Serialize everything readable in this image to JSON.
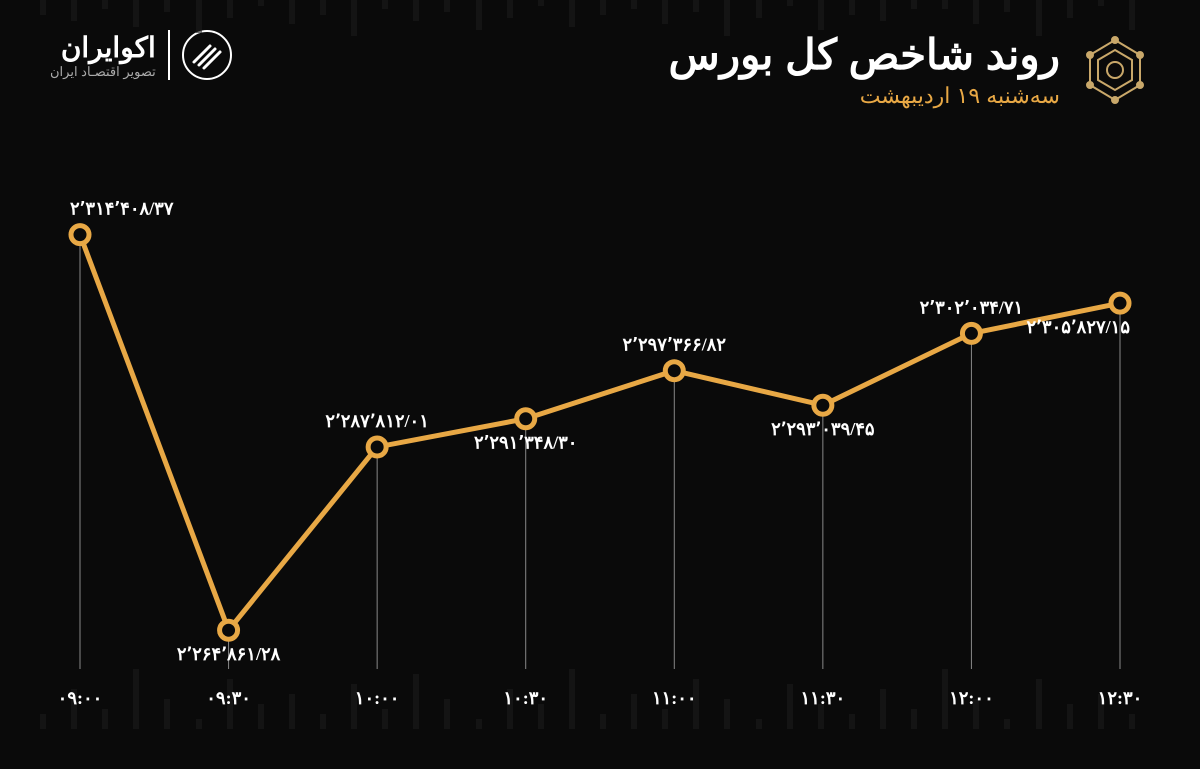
{
  "header": {
    "title": "روند شاخص کل بورس",
    "subtitle": "سه‌شنبه ۱۹ اردیبهشت",
    "brand_name": "اکوایران",
    "brand_tagline": "تصویر اقتصـاد ایران"
  },
  "chart": {
    "type": "line",
    "line_color": "#e8a845",
    "line_width": 5,
    "marker_fill": "#0a0a0a",
    "marker_stroke": "#e8a845",
    "marker_stroke_width": 5,
    "marker_radius": 9,
    "drop_line_color": "#888888",
    "drop_line_width": 1,
    "background_color": "#0a0a0a",
    "title_color": "#ffffff",
    "subtitle_color": "#e8a845",
    "label_color": "#ffffff",
    "label_fontsize": 18,
    "xaxis_fontsize": 18,
    "ylim": [
      2260000,
      2320000
    ],
    "x_labels": [
      "۰۹:۰۰",
      "۰۹:۳۰",
      "۱۰:۰۰",
      "۱۰:۳۰",
      "۱۱:۰۰",
      "۱۱:۳۰",
      "۱۲:۰۰",
      "۱۲:۳۰"
    ],
    "values": [
      2314408.37,
      2264861.28,
      2287812.01,
      2291348.3,
      2297366.82,
      2293039.45,
      2302034.71,
      2305827.15
    ],
    "value_labels": [
      "۲٬۳۱۴٬۴۰۸/۳۷",
      "۲٬۲۶۴٬۸۶۱/۲۸",
      "۲٬۲۸۷٬۸۱۲/۰۱",
      "۲٬۲۹۱٬۳۴۸/۳۰",
      "۲٬۲۹۷٬۳۶۶/۸۲",
      "۲٬۲۹۳٬۰۳۹/۴۵",
      "۲٬۳۰۲٬۰۳۴/۷۱",
      "۲٬۳۰۵٬۸۲۷/۱۵"
    ],
    "label_positions": [
      "above",
      "below",
      "above",
      "below",
      "above",
      "below",
      "above",
      "below"
    ]
  }
}
